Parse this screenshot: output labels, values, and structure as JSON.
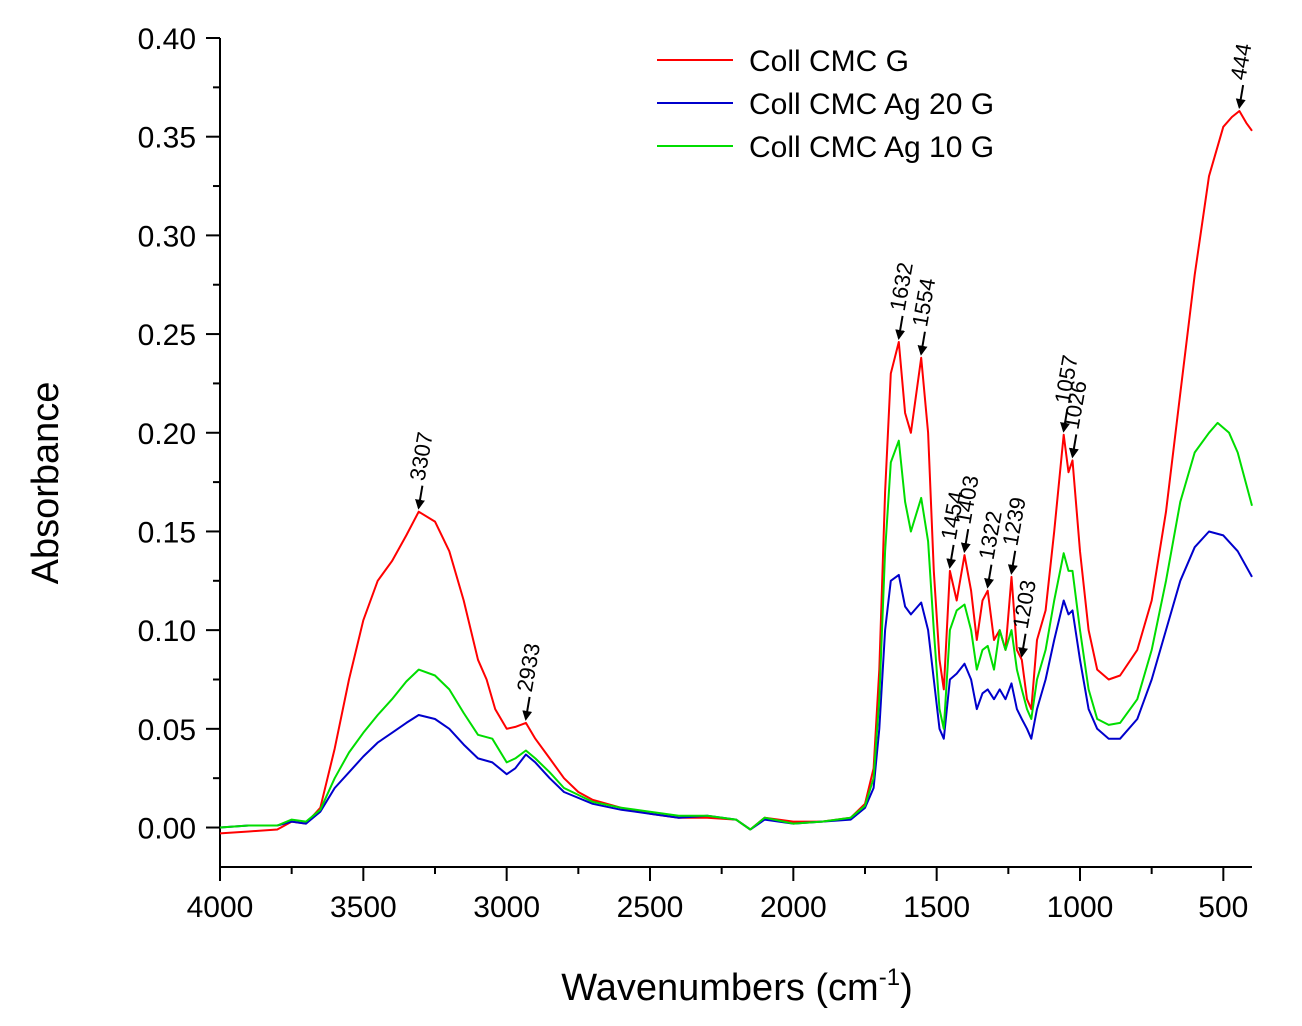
{
  "chart_data": {
    "type": "line",
    "xlabel": "Wavenumbers (cm",
    "xlabel_sup": "-1",
    "xlabel_end": ")",
    "ylabel": "Absorbance",
    "xlim": [
      4000,
      400
    ],
    "ylim": [
      -0.02,
      0.4
    ],
    "x_reversed": true,
    "x_ticks": [
      4000,
      3500,
      3000,
      2500,
      2000,
      1500,
      1000,
      500
    ],
    "x_tick_labels": [
      "4000",
      "3500",
      "3000",
      "2500",
      "2000",
      "1500",
      "1000",
      "500"
    ],
    "y_ticks": [
      0.0,
      0.05,
      0.1,
      0.15,
      0.2,
      0.25,
      0.3,
      0.35,
      0.4
    ],
    "y_tick_labels": [
      "0.00",
      "0.05",
      "0.10",
      "0.15",
      "0.20",
      "0.25",
      "0.30",
      "0.35",
      "0.40"
    ],
    "grid": false,
    "legend_position": "top-center",
    "series": [
      {
        "name": "Coll CMC G",
        "color": "#ff0000",
        "points": [
          [
            4000,
            -0.003
          ],
          [
            3900,
            -0.002
          ],
          [
            3800,
            -0.001
          ],
          [
            3750,
            0.003
          ],
          [
            3700,
            0.002
          ],
          [
            3650,
            0.01
          ],
          [
            3600,
            0.04
          ],
          [
            3550,
            0.075
          ],
          [
            3500,
            0.105
          ],
          [
            3450,
            0.125
          ],
          [
            3400,
            0.135
          ],
          [
            3350,
            0.148
          ],
          [
            3307,
            0.16
          ],
          [
            3250,
            0.155
          ],
          [
            3200,
            0.14
          ],
          [
            3150,
            0.115
          ],
          [
            3100,
            0.085
          ],
          [
            3070,
            0.075
          ],
          [
            3040,
            0.06
          ],
          [
            3000,
            0.05
          ],
          [
            2970,
            0.051
          ],
          [
            2933,
            0.053
          ],
          [
            2900,
            0.045
          ],
          [
            2850,
            0.035
          ],
          [
            2800,
            0.025
          ],
          [
            2750,
            0.018
          ],
          [
            2700,
            0.014
          ],
          [
            2600,
            0.01
          ],
          [
            2500,
            0.007
          ],
          [
            2400,
            0.005
          ],
          [
            2300,
            0.005
          ],
          [
            2200,
            0.004
          ],
          [
            2150,
            -0.001
          ],
          [
            2100,
            0.005
          ],
          [
            2000,
            0.003
          ],
          [
            1900,
            0.003
          ],
          [
            1800,
            0.005
          ],
          [
            1750,
            0.012
          ],
          [
            1720,
            0.03
          ],
          [
            1700,
            0.08
          ],
          [
            1680,
            0.17
          ],
          [
            1660,
            0.23
          ],
          [
            1632,
            0.246
          ],
          [
            1610,
            0.21
          ],
          [
            1590,
            0.2
          ],
          [
            1554,
            0.238
          ],
          [
            1530,
            0.2
          ],
          [
            1510,
            0.13
          ],
          [
            1490,
            0.085
          ],
          [
            1475,
            0.07
          ],
          [
            1454,
            0.13
          ],
          [
            1430,
            0.115
          ],
          [
            1403,
            0.138
          ],
          [
            1380,
            0.12
          ],
          [
            1360,
            0.095
          ],
          [
            1340,
            0.115
          ],
          [
            1322,
            0.12
          ],
          [
            1300,
            0.095
          ],
          [
            1280,
            0.1
          ],
          [
            1260,
            0.09
          ],
          [
            1239,
            0.127
          ],
          [
            1220,
            0.09
          ],
          [
            1203,
            0.085
          ],
          [
            1185,
            0.065
          ],
          [
            1170,
            0.06
          ],
          [
            1150,
            0.095
          ],
          [
            1120,
            0.11
          ],
          [
            1090,
            0.15
          ],
          [
            1057,
            0.199
          ],
          [
            1040,
            0.18
          ],
          [
            1026,
            0.186
          ],
          [
            1000,
            0.14
          ],
          [
            970,
            0.1
          ],
          [
            940,
            0.08
          ],
          [
            900,
            0.075
          ],
          [
            860,
            0.077
          ],
          [
            800,
            0.09
          ],
          [
            750,
            0.115
          ],
          [
            700,
            0.16
          ],
          [
            650,
            0.22
          ],
          [
            600,
            0.28
          ],
          [
            550,
            0.33
          ],
          [
            500,
            0.355
          ],
          [
            470,
            0.36
          ],
          [
            444,
            0.363
          ],
          [
            420,
            0.357
          ],
          [
            400,
            0.353
          ]
        ]
      },
      {
        "name": "Coll CMC Ag 20 G",
        "color": "#0000cc",
        "points": [
          [
            4000,
            0.0
          ],
          [
            3900,
            0.001
          ],
          [
            3800,
            0.001
          ],
          [
            3750,
            0.003
          ],
          [
            3700,
            0.002
          ],
          [
            3650,
            0.008
          ],
          [
            3600,
            0.02
          ],
          [
            3550,
            0.028
          ],
          [
            3500,
            0.036
          ],
          [
            3450,
            0.043
          ],
          [
            3400,
            0.048
          ],
          [
            3350,
            0.053
          ],
          [
            3307,
            0.057
          ],
          [
            3250,
            0.055
          ],
          [
            3200,
            0.05
          ],
          [
            3150,
            0.042
          ],
          [
            3100,
            0.035
          ],
          [
            3050,
            0.033
          ],
          [
            3000,
            0.027
          ],
          [
            2970,
            0.03
          ],
          [
            2933,
            0.037
          ],
          [
            2900,
            0.033
          ],
          [
            2850,
            0.025
          ],
          [
            2800,
            0.018
          ],
          [
            2700,
            0.012
          ],
          [
            2600,
            0.009
          ],
          [
            2500,
            0.007
          ],
          [
            2400,
            0.005
          ],
          [
            2300,
            0.006
          ],
          [
            2200,
            0.004
          ],
          [
            2150,
            -0.001
          ],
          [
            2100,
            0.004
          ],
          [
            2000,
            0.002
          ],
          [
            1900,
            0.003
          ],
          [
            1800,
            0.004
          ],
          [
            1750,
            0.01
          ],
          [
            1720,
            0.02
          ],
          [
            1700,
            0.05
          ],
          [
            1680,
            0.1
          ],
          [
            1660,
            0.125
          ],
          [
            1632,
            0.128
          ],
          [
            1610,
            0.112
          ],
          [
            1590,
            0.108
          ],
          [
            1554,
            0.114
          ],
          [
            1530,
            0.1
          ],
          [
            1510,
            0.075
          ],
          [
            1490,
            0.05
          ],
          [
            1475,
            0.045
          ],
          [
            1454,
            0.075
          ],
          [
            1430,
            0.078
          ],
          [
            1403,
            0.083
          ],
          [
            1380,
            0.075
          ],
          [
            1360,
            0.06
          ],
          [
            1340,
            0.068
          ],
          [
            1322,
            0.07
          ],
          [
            1300,
            0.065
          ],
          [
            1280,
            0.07
          ],
          [
            1260,
            0.065
          ],
          [
            1239,
            0.073
          ],
          [
            1220,
            0.06
          ],
          [
            1203,
            0.055
          ],
          [
            1185,
            0.05
          ],
          [
            1170,
            0.045
          ],
          [
            1150,
            0.06
          ],
          [
            1120,
            0.075
          ],
          [
            1090,
            0.095
          ],
          [
            1057,
            0.115
          ],
          [
            1040,
            0.108
          ],
          [
            1026,
            0.11
          ],
          [
            1000,
            0.085
          ],
          [
            970,
            0.06
          ],
          [
            940,
            0.05
          ],
          [
            900,
            0.045
          ],
          [
            860,
            0.045
          ],
          [
            800,
            0.055
          ],
          [
            750,
            0.075
          ],
          [
            700,
            0.1
          ],
          [
            650,
            0.125
          ],
          [
            600,
            0.142
          ],
          [
            550,
            0.15
          ],
          [
            500,
            0.148
          ],
          [
            450,
            0.14
          ],
          [
            400,
            0.127
          ]
        ]
      },
      {
        "name": "Coll CMC Ag 10 G",
        "color": "#00dd00",
        "points": [
          [
            4000,
            0.0
          ],
          [
            3900,
            0.001
          ],
          [
            3800,
            0.001
          ],
          [
            3750,
            0.004
          ],
          [
            3700,
            0.003
          ],
          [
            3650,
            0.009
          ],
          [
            3600,
            0.025
          ],
          [
            3550,
            0.038
          ],
          [
            3500,
            0.048
          ],
          [
            3450,
            0.057
          ],
          [
            3400,
            0.065
          ],
          [
            3350,
            0.074
          ],
          [
            3307,
            0.08
          ],
          [
            3250,
            0.077
          ],
          [
            3200,
            0.07
          ],
          [
            3150,
            0.058
          ],
          [
            3100,
            0.047
          ],
          [
            3050,
            0.045
          ],
          [
            3000,
            0.033
          ],
          [
            2970,
            0.035
          ],
          [
            2933,
            0.039
          ],
          [
            2900,
            0.035
          ],
          [
            2850,
            0.028
          ],
          [
            2800,
            0.02
          ],
          [
            2700,
            0.013
          ],
          [
            2600,
            0.01
          ],
          [
            2500,
            0.008
          ],
          [
            2400,
            0.006
          ],
          [
            2300,
            0.006
          ],
          [
            2200,
            0.004
          ],
          [
            2150,
            -0.001
          ],
          [
            2100,
            0.005
          ],
          [
            2000,
            0.002
          ],
          [
            1900,
            0.003
          ],
          [
            1800,
            0.005
          ],
          [
            1750,
            0.011
          ],
          [
            1720,
            0.025
          ],
          [
            1700,
            0.065
          ],
          [
            1680,
            0.14
          ],
          [
            1660,
            0.185
          ],
          [
            1632,
            0.196
          ],
          [
            1610,
            0.165
          ],
          [
            1590,
            0.15
          ],
          [
            1554,
            0.167
          ],
          [
            1530,
            0.145
          ],
          [
            1510,
            0.1
          ],
          [
            1490,
            0.06
          ],
          [
            1475,
            0.05
          ],
          [
            1454,
            0.1
          ],
          [
            1430,
            0.11
          ],
          [
            1403,
            0.113
          ],
          [
            1380,
            0.1
          ],
          [
            1360,
            0.08
          ],
          [
            1340,
            0.09
          ],
          [
            1322,
            0.092
          ],
          [
            1300,
            0.08
          ],
          [
            1280,
            0.1
          ],
          [
            1260,
            0.09
          ],
          [
            1239,
            0.1
          ],
          [
            1220,
            0.08
          ],
          [
            1203,
            0.07
          ],
          [
            1185,
            0.06
          ],
          [
            1170,
            0.055
          ],
          [
            1150,
            0.075
          ],
          [
            1120,
            0.09
          ],
          [
            1090,
            0.115
          ],
          [
            1057,
            0.139
          ],
          [
            1040,
            0.13
          ],
          [
            1026,
            0.13
          ],
          [
            1000,
            0.1
          ],
          [
            970,
            0.07
          ],
          [
            940,
            0.055
          ],
          [
            900,
            0.052
          ],
          [
            860,
            0.053
          ],
          [
            800,
            0.065
          ],
          [
            750,
            0.09
          ],
          [
            700,
            0.125
          ],
          [
            650,
            0.165
          ],
          [
            600,
            0.19
          ],
          [
            550,
            0.2
          ],
          [
            520,
            0.205
          ],
          [
            480,
            0.2
          ],
          [
            450,
            0.19
          ],
          [
            400,
            0.163
          ]
        ]
      }
    ],
    "annotations": [
      {
        "label": "3307",
        "x": 3307,
        "y": 0.16
      },
      {
        "label": "2933",
        "x": 2933,
        "y": 0.053
      },
      {
        "label": "1632",
        "x": 1632,
        "y": 0.246
      },
      {
        "label": "1554",
        "x": 1554,
        "y": 0.238
      },
      {
        "label": "1454",
        "x": 1454,
        "y": 0.13
      },
      {
        "label": "1403",
        "x": 1403,
        "y": 0.138
      },
      {
        "label": "1322",
        "x": 1322,
        "y": 0.12
      },
      {
        "label": "1239",
        "x": 1239,
        "y": 0.127
      },
      {
        "label": "1203",
        "x": 1203,
        "y": 0.085
      },
      {
        "label": "1057",
        "x": 1057,
        "y": 0.199
      },
      {
        "label": "1026",
        "x": 1026,
        "y": 0.186
      },
      {
        "label": "444",
        "x": 444,
        "y": 0.363
      }
    ]
  }
}
